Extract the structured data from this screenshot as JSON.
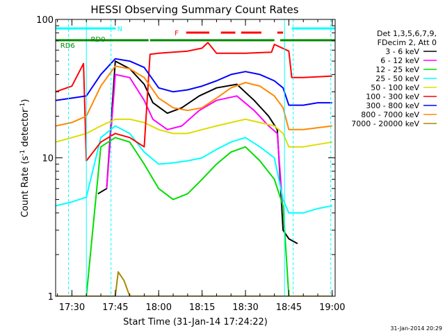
{
  "chart_data": {
    "type": "line",
    "title": "HESSI Observing Summary Count Rates",
    "xlabel": "Start Time (31-Jan-14 17:24:22)",
    "ylabel": "Count Rate (s⁻¹ detector⁻¹)",
    "ylabel_parts": {
      "main": "Count Rate (s",
      "sup1": "-1",
      "mid": " detector",
      "sup2": "-1",
      "end": ")"
    },
    "yscale": "log",
    "ylim": [
      1,
      100
    ],
    "xlim": [
      "17:24:22",
      "19:01:00"
    ],
    "x_ticks": [
      "17:30",
      "17:45",
      "18:00",
      "18:15",
      "18:30",
      "18:45",
      "19:00"
    ],
    "y_ticks": [
      "1",
      "10",
      "100"
    ],
    "legend": {
      "placement": "right",
      "header": [
        "Det 1,3,5,6,7,9,",
        "FDecim 2, Att 0"
      ],
      "entries": [
        {
          "label": "3 - 6 keV",
          "color": "#000000"
        },
        {
          "label": "6 - 12 keV",
          "color": "#ff00ff"
        },
        {
          "label": "12 - 25 keV",
          "color": "#00dd00"
        },
        {
          "label": "25 - 50 keV",
          "color": "#00ffff"
        },
        {
          "label": "50 - 100 keV",
          "color": "#dddd00"
        },
        {
          "label": "100 - 300 keV",
          "color": "#ff0000"
        },
        {
          "label": "300 - 800 keV",
          "color": "#0000ff"
        },
        {
          "label": "800 - 7000 keV",
          "color": "#ff8800"
        },
        {
          "label": "7000 - 20000 keV",
          "color": "#aa8800"
        }
      ]
    },
    "flag_bars": [
      {
        "label": "N",
        "color": "#00ffff",
        "segments": [
          [
            "17:24:22",
            "17:45:10"
          ],
          [
            "18:46:00",
            "19:01:00"
          ]
        ]
      },
      {
        "label": "F",
        "color": "#ff0000",
        "segments": [
          [
            "18:09:30",
            "18:17:30"
          ],
          [
            "18:21:30",
            "18:26:30"
          ],
          [
            "18:28:30",
            "18:35:30"
          ],
          [
            "18:41:00",
            "18:43:00"
          ]
        ]
      },
      {
        "label": "RD0",
        "color": "#008800",
        "segments": [
          [
            "17:34:00",
            "17:45:00"
          ]
        ]
      },
      {
        "label": "RD6",
        "color": "#008800",
        "segments": [
          [
            "17:24:22",
            "17:34:00"
          ],
          [
            "17:45:00",
            "17:56:30"
          ],
          [
            "17:57:00",
            "18:40:00"
          ],
          [
            "18:42:00",
            "19:01:00"
          ]
        ]
      }
    ],
    "vlines": [
      {
        "x": "17:28:50",
        "color": "#00ffff",
        "style": "dashed"
      },
      {
        "x": "17:43:30",
        "color": "#00ffff",
        "style": "dashed"
      },
      {
        "x": "17:35:00",
        "color": "#00ffff",
        "style": "solid"
      },
      {
        "x": "18:43:30",
        "color": "#00ffff",
        "style": "solid"
      },
      {
        "x": "18:46:30",
        "color": "#00ffff",
        "style": "dashed"
      },
      {
        "x": "18:59:30",
        "color": "#00ffff",
        "style": "dashed"
      }
    ],
    "series": [
      {
        "name": "3 - 6 keV",
        "color": "#000000",
        "x": [
          "17:39:00",
          "17:42:00",
          "17:45:00",
          "17:50:00",
          "17:55:00",
          "17:58:00",
          "18:03:00",
          "18:08:00",
          "18:14:00",
          "18:20:00",
          "18:27:00",
          "18:33:00",
          "18:38:00",
          "18:41:00",
          "18:43:00",
          "18:45:00",
          "18:48:00"
        ],
        "y": [
          5.5,
          6.0,
          50,
          44,
          34,
          25,
          21,
          23,
          28,
          32,
          34,
          26,
          20,
          16,
          3,
          2.6,
          2.4
        ]
      },
      {
        "name": "6 - 12 keV",
        "color": "#ff00ff",
        "x": [
          "17:42:00",
          "17:45:00",
          "17:50:00",
          "17:55:00",
          "17:58:00",
          "18:03:00",
          "18:08:00",
          "18:14:00",
          "18:20:00",
          "18:27:00",
          "18:33:00",
          "18:38:00",
          "18:41:00",
          "18:43:00"
        ],
        "y": [
          6.0,
          40,
          38,
          26,
          19,
          16,
          17,
          22,
          26,
          28,
          22,
          17,
          15,
          4
        ]
      },
      {
        "name": "12 - 25 keV",
        "color": "#00dd00",
        "x": [
          "17:24:22",
          "17:35:00",
          "17:40:00",
          "17:45:00",
          "17:50:00",
          "17:55:00",
          "18:00:00",
          "18:05:00",
          "18:10:00",
          "18:15:00",
          "18:20:00",
          "18:25:00",
          "18:30:00",
          "18:35:00",
          "18:40:00",
          "18:43:00",
          "18:45:00",
          "18:50:00",
          "18:55:00",
          "19:00:00"
        ],
        "y": [
          1.0,
          1.0,
          12,
          14,
          13,
          9,
          6.0,
          5.0,
          5.5,
          7.0,
          9.0,
          11,
          12,
          9.5,
          7.0,
          4.5,
          1.0,
          1.0,
          1.0,
          1.0
        ]
      },
      {
        "name": "25 - 50 keV",
        "color": "#00ffff",
        "x": [
          "17:24:22",
          "17:30:00",
          "17:35:00",
          "17:40:00",
          "17:45:00",
          "17:50:00",
          "17:55:00",
          "18:00:00",
          "18:05:00",
          "18:10:00",
          "18:15:00",
          "18:20:00",
          "18:25:00",
          "18:30:00",
          "18:35:00",
          "18:40:00",
          "18:43:00",
          "18:45:00",
          "18:50:00",
          "18:55:00",
          "19:00:00"
        ],
        "y": [
          4.5,
          4.8,
          5.2,
          14,
          17,
          15,
          11,
          9.0,
          9.2,
          9.5,
          10,
          11.5,
          13,
          14,
          12,
          10,
          5.0,
          4.0,
          4.0,
          4.3,
          4.5
        ]
      },
      {
        "name": "50 - 100 keV",
        "color": "#dddd00",
        "x": [
          "17:24:22",
          "17:30:00",
          "17:35:00",
          "17:40:00",
          "17:45:00",
          "17:50:00",
          "17:55:00",
          "18:00:00",
          "18:05:00",
          "18:10:00",
          "18:15:00",
          "18:20:00",
          "18:25:00",
          "18:30:00",
          "18:35:00",
          "18:40:00",
          "18:43:00",
          "18:45:00",
          "18:50:00",
          "18:55:00",
          "19:00:00"
        ],
        "y": [
          13,
          14,
          15,
          17,
          19,
          19,
          18,
          16,
          15,
          15,
          16,
          17,
          18,
          19,
          18,
          17,
          15,
          12,
          12,
          12.5,
          13
        ]
      },
      {
        "name": "100 - 300 keV",
        "color": "#ff0000",
        "x": [
          "17:24:22",
          "17:30:00",
          "17:34:00",
          "17:35:00",
          "17:40:00",
          "17:45:00",
          "17:50:00",
          "17:55:00",
          "17:57:00",
          "18:00:00",
          "18:10:00",
          "18:15:00",
          "18:17:00",
          "18:20:00",
          "18:30:00",
          "18:39:00",
          "18:40:00",
          "18:45:00",
          "18:46:00",
          "18:50:00",
          "19:00:00"
        ],
        "y": [
          30,
          33,
          48,
          9.5,
          13,
          15,
          14,
          12,
          56,
          57,
          59,
          62,
          68,
          57,
          57,
          58,
          66,
          59,
          38,
          38,
          39
        ]
      },
      {
        "name": "300 - 800 keV",
        "color": "#0000ff",
        "x": [
          "17:24:22",
          "17:30:00",
          "17:35:00",
          "17:40:00",
          "17:45:00",
          "17:50:00",
          "17:55:00",
          "18:00:00",
          "18:05:00",
          "18:10:00",
          "18:15:00",
          "18:20:00",
          "18:25:00",
          "18:30:00",
          "18:35:00",
          "18:40:00",
          "18:43:00",
          "18:45:00",
          "18:50:00",
          "18:55:00",
          "19:00:00"
        ],
        "y": [
          26,
          27,
          28,
          40,
          52,
          50,
          45,
          32,
          30,
          31,
          33,
          36,
          40,
          42,
          40,
          36,
          32,
          24,
          24,
          25,
          25
        ]
      },
      {
        "name": "800 - 7000 keV",
        "color": "#ff8800",
        "x": [
          "17:24:22",
          "17:30:00",
          "17:35:00",
          "17:40:00",
          "17:45:00",
          "17:50:00",
          "17:55:00",
          "18:00:00",
          "18:05:00",
          "18:10:00",
          "18:15:00",
          "18:20:00",
          "18:25:00",
          "18:30:00",
          "18:35:00",
          "18:40:00",
          "18:43:00",
          "18:45:00",
          "18:50:00",
          "18:55:00",
          "19:00:00"
        ],
        "y": [
          17,
          18,
          20,
          33,
          46,
          44,
          38,
          27,
          23,
          22,
          23,
          27,
          32,
          35,
          33,
          28,
          23,
          16,
          16,
          16.5,
          17
        ]
      },
      {
        "name": "7000 - 20000 keV",
        "color": "#aa8800",
        "x": [
          "17:24:22",
          "17:30:00",
          "17:35:00",
          "17:40:00",
          "17:45:00",
          "17:46:00",
          "17:48:00",
          "17:50:00",
          "18:00:00",
          "18:30:00",
          "18:43:00",
          "18:45:00",
          "19:00:00"
        ],
        "y": [
          1.0,
          1.0,
          1.0,
          1.0,
          1.0,
          1.5,
          1.3,
          1.0,
          1.0,
          1.0,
          1.0,
          1.0,
          1.0
        ]
      }
    ]
  },
  "footer_date": "31-Jan-2014 20:29"
}
